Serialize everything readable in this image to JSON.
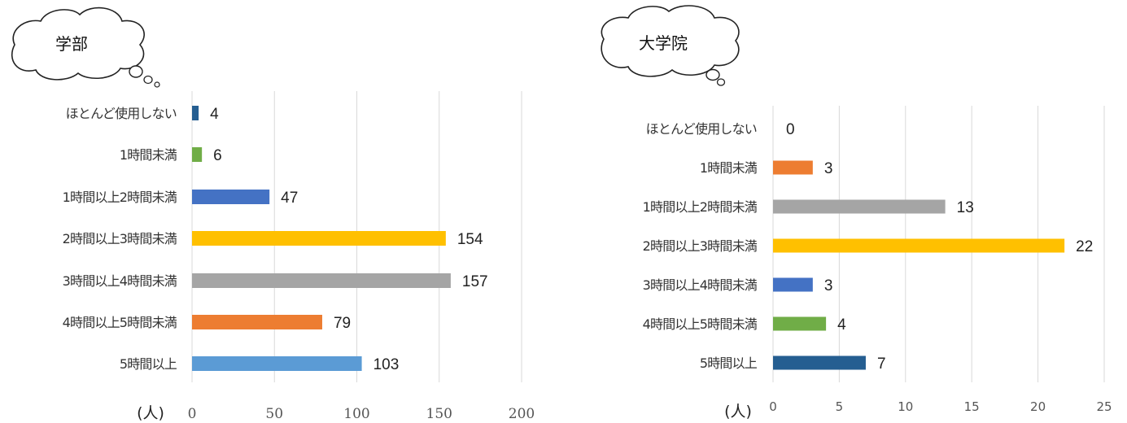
{
  "chart_data": [
    {
      "type": "bar",
      "orientation": "horizontal",
      "title": "学部",
      "xlabel": "(人)",
      "categories": [
        "ほとんど使用しない",
        "1時間未満",
        "1時間以上2時間未満",
        "2時間以上3時間未満",
        "3時間以上4時間未満",
        "4時間以上5時間未満",
        "5時間以上"
      ],
      "values": [
        4,
        6,
        47,
        154,
        157,
        79,
        103
      ],
      "colors": [
        "#255E91",
        "#70AD47",
        "#4472C4",
        "#FFC000",
        "#A5A5A5",
        "#ED7D31",
        "#5B9BD5"
      ],
      "xlim": [
        0,
        200
      ],
      "xticks": [
        "0",
        "50",
        "100",
        "150",
        "200"
      ],
      "grid": true,
      "legend": "none"
    },
    {
      "type": "bar",
      "orientation": "horizontal",
      "title": "大学院",
      "xlabel": "(人)",
      "categories": [
        "ほとんど使用しない",
        "1時間未満",
        "1時間以上2時間未満",
        "2時間以上3時間未満",
        "3時間以上4時間未満",
        "4時間以上5時間未満",
        "5時間以上"
      ],
      "values": [
        0,
        3,
        13,
        22,
        3,
        4,
        7
      ],
      "colors": [
        "#255E91",
        "#ED7D31",
        "#A5A5A5",
        "#FFC000",
        "#4472C4",
        "#70AD47",
        "#255E91"
      ],
      "xlim": [
        0,
        25
      ],
      "xticks": [
        "0",
        "5",
        "10",
        "15",
        "20",
        "25"
      ],
      "grid": true,
      "legend": "none"
    }
  ]
}
